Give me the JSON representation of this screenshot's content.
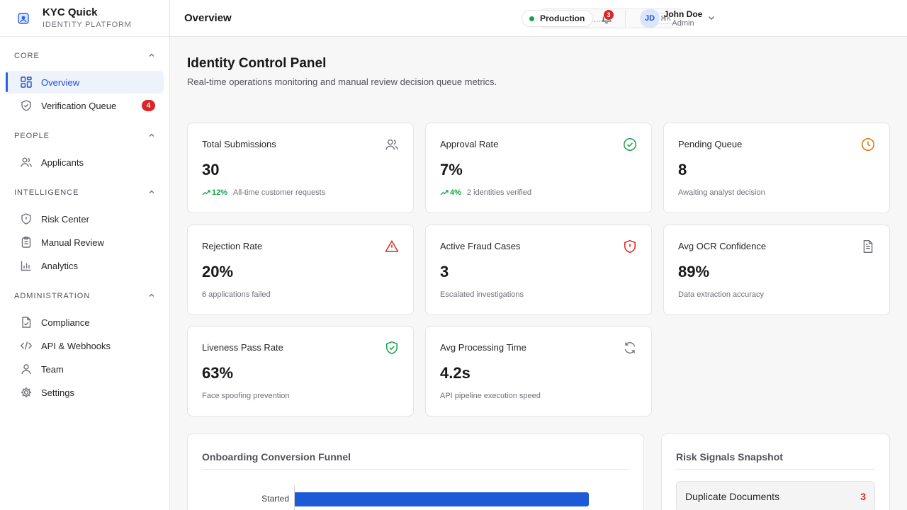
{
  "brand": {
    "name": "KYC Quick",
    "subtitle": "IDENTITY PLATFORM"
  },
  "sidebar": {
    "sections": [
      {
        "title": "CORE",
        "items": [
          {
            "label": "Overview",
            "icon": "grid-icon",
            "active": true
          },
          {
            "label": "Verification Queue",
            "icon": "shield-check-icon",
            "badge": "4"
          }
        ]
      },
      {
        "title": "PEOPLE",
        "items": [
          {
            "label": "Applicants",
            "icon": "users-icon"
          }
        ]
      },
      {
        "title": "INTELLIGENCE",
        "items": [
          {
            "label": "Risk Center",
            "icon": "shield-alert-icon"
          },
          {
            "label": "Manual Review",
            "icon": "clipboard-icon"
          },
          {
            "label": "Analytics",
            "icon": "bar-chart-icon"
          }
        ]
      },
      {
        "title": "ADMINISTRATION",
        "items": [
          {
            "label": "Compliance",
            "icon": "file-check-icon"
          },
          {
            "label": "API & Webhooks",
            "icon": "code-icon"
          },
          {
            "label": "Team",
            "icon": "user-icon"
          },
          {
            "label": "Settings",
            "icon": "gear-icon"
          }
        ]
      }
    ]
  },
  "header": {
    "title": "Overview",
    "search_placeholder": "Search...",
    "search_shortcut": "⌘K",
    "environment": "Production",
    "notification_count": "3",
    "user": {
      "initials": "JD",
      "name": "John Doe",
      "role": "Admin"
    }
  },
  "main": {
    "title": "Identity Control Panel",
    "subtitle": "Real-time operations monitoring and manual review decision queue metrics.",
    "cards": [
      {
        "label": "Total Submissions",
        "value": "30",
        "trend": "12%",
        "foot": "All-time customer requests",
        "icon": "users-icon",
        "icon_color": "#71717a"
      },
      {
        "label": "Approval Rate",
        "value": "7%",
        "trend": "4%",
        "foot": "2 identities verified",
        "icon": "check-circle-icon",
        "icon_color": "#16a34a"
      },
      {
        "label": "Pending Queue",
        "value": "8",
        "foot": "Awaiting analyst decision",
        "icon": "clock-icon",
        "icon_color": "#d97706"
      },
      {
        "label": "Rejection Rate",
        "value": "20%",
        "foot": "6 applications failed",
        "icon": "alert-triangle-icon",
        "icon_color": "#dc2626"
      },
      {
        "label": "Active Fraud Cases",
        "value": "3",
        "foot": "Escalated investigations",
        "icon": "shield-alert-icon",
        "icon_color": "#dc2626"
      },
      {
        "label": "Avg OCR Confidence",
        "value": "89%",
        "foot": "Data extraction accuracy",
        "icon": "document-icon",
        "icon_color": "#71717a"
      },
      {
        "label": "Liveness Pass Rate",
        "value": "63%",
        "foot": "Face spoofing prevention",
        "icon": "shield-check-icon",
        "icon_color": "#16a34a"
      },
      {
        "label": "Avg Processing Time",
        "value": "4.2s",
        "foot": "API pipeline execution speed",
        "icon": "refresh-icon",
        "icon_color": "#71717a"
      }
    ],
    "funnel": {
      "title": "Onboarding Conversion Funnel",
      "stages": [
        {
          "label": "Started",
          "value": 30
        }
      ],
      "max": 30
    },
    "risk": {
      "title": "Risk Signals Snapshot",
      "signals": [
        {
          "label": "Duplicate Documents",
          "count": "3"
        }
      ]
    }
  },
  "colors": {
    "accent": "#2563eb",
    "danger": "#dc2626",
    "success": "#16a34a",
    "warning": "#d97706"
  }
}
